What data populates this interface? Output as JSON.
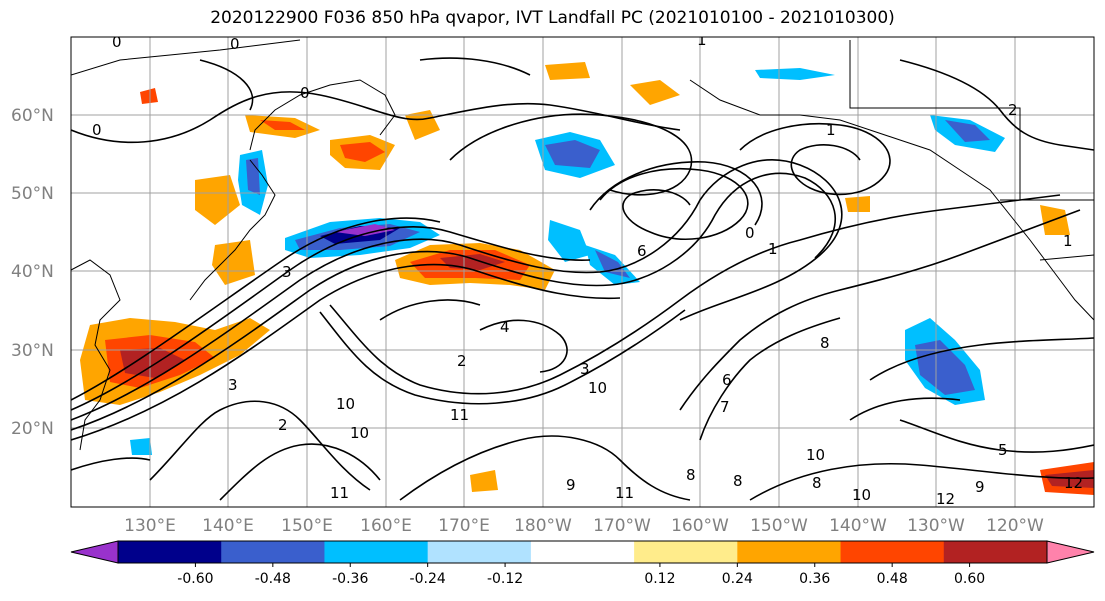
{
  "title": "2020122900 F036 850 hPa qvapor, IVT Landfall PC (2021010100 - 2021010300)",
  "latitude_labels": [
    "60°N",
    "50°N",
    "40°N",
    "30°N",
    "20°N"
  ],
  "longitude_labels": [
    "130°E",
    "140°E",
    "150°E",
    "160°E",
    "170°E",
    "180°W",
    "170°W",
    "160°W",
    "150°W",
    "140°W",
    "130°W",
    "120°W"
  ],
  "colorbar": {
    "colors": [
      "#9932cc",
      "#00008b",
      "#3a5fcd",
      "#00bfff",
      "#b0e2ff",
      "#ffffff",
      "#ffec8b",
      "#ffa500",
      "#ff4500",
      "#b22222",
      "#ff82ab"
    ],
    "tick_labels": [
      "-0.60",
      "-0.48",
      "-0.36",
      "-0.24",
      "-0.12",
      "0.12",
      "0.24",
      "0.36",
      "0.48",
      "0.60"
    ]
  },
  "contour_labels": [
    "0",
    "0",
    "0",
    "0",
    "0",
    "1",
    "1",
    "1",
    "2",
    "2",
    "2",
    "3",
    "3",
    "3",
    "4",
    "5",
    "6",
    "6",
    "7",
    "8",
    "8",
    "8",
    "8",
    "9",
    "9",
    "10",
    "10",
    "10",
    "10",
    "10",
    "11",
    "11",
    "11",
    "12",
    "12",
    "1"
  ]
}
